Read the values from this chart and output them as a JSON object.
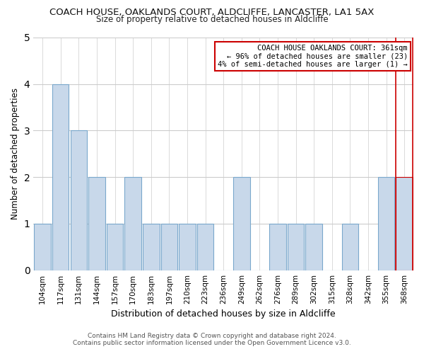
{
  "title": "COACH HOUSE, OAKLANDS COURT, ALDCLIFFE, LANCASTER, LA1 5AX",
  "subtitle": "Size of property relative to detached houses in Aldcliffe",
  "xlabel": "Distribution of detached houses by size in Aldcliffe",
  "ylabel": "Number of detached properties",
  "footer1": "Contains HM Land Registry data © Crown copyright and database right 2024.",
  "footer2": "Contains public sector information licensed under the Open Government Licence v3.0.",
  "categories": [
    "104sqm",
    "117sqm",
    "131sqm",
    "144sqm",
    "157sqm",
    "170sqm",
    "183sqm",
    "197sqm",
    "210sqm",
    "223sqm",
    "236sqm",
    "249sqm",
    "262sqm",
    "276sqm",
    "289sqm",
    "302sqm",
    "315sqm",
    "328sqm",
    "342sqm",
    "355sqm",
    "368sqm"
  ],
  "values": [
    1,
    4,
    3,
    2,
    1,
    2,
    1,
    1,
    1,
    1,
    0,
    2,
    0,
    1,
    1,
    1,
    0,
    1,
    0,
    2,
    2
  ],
  "bar_color": "#c8d8ea",
  "bar_edge_color": "#7aa8cc",
  "highlight_index": 20,
  "highlight_bar_color": "#c8d8ea",
  "highlight_edge_color": "#cc0000",
  "annotation_box_text": "COACH HOUSE OAKLANDS COURT: 361sqm\n← 96% of detached houses are smaller (23)\n4% of semi-detached houses are larger (1) →",
  "annotation_box_color": "#ffffff",
  "annotation_box_edge_color": "#cc0000",
  "ylim": [
    0,
    5
  ],
  "yticks": [
    0,
    1,
    2,
    3,
    4,
    5
  ],
  "grid_color": "#cccccc",
  "background_color": "#ffffff",
  "plot_bg_color": "#ffffff"
}
